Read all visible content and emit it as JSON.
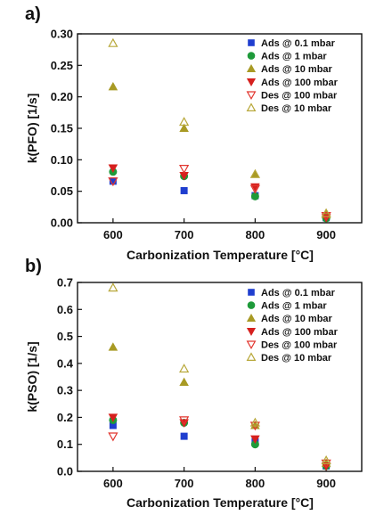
{
  "colors": {
    "ads_0_1": "#1f3ecf",
    "ads_1": "#1e9a3a",
    "ads_10": "#a89a24",
    "ads_100": "#d6201e",
    "des_100": "#e2362f",
    "des_10": "#b8a83a"
  },
  "chart_data": [
    {
      "type": "scatter",
      "panel_label": "a)",
      "title": "",
      "xlabel": "Carbonization Temperature [°C]",
      "ylabel": "k(PFO) [1/s]",
      "xlim": [
        550,
        950
      ],
      "ylim": [
        0.0,
        0.3
      ],
      "xticks": [
        600,
        700,
        800,
        900
      ],
      "yticks": [
        0.0,
        0.05,
        0.1,
        0.15,
        0.2,
        0.25,
        0.3
      ],
      "ytick_labels": [
        "0.00",
        "0.05",
        "0.10",
        "0.15",
        "0.20",
        "0.25",
        "0.30"
      ],
      "legend_position": "top-right",
      "grid": false,
      "x": [
        600,
        700,
        800,
        900
      ],
      "series": [
        {
          "name": "Ads @ 0.1 mbar",
          "marker": "square",
          "color": "#1f3ecf",
          "filled": true,
          "values": [
            0.066,
            0.051,
            0.043,
            0.008
          ]
        },
        {
          "name": "Ads @ 1 mbar",
          "marker": "circle",
          "color": "#1e9a3a",
          "filled": true,
          "values": [
            0.081,
            0.074,
            0.042,
            0.007
          ]
        },
        {
          "name": "Ads @ 10 mbar",
          "marker": "triangle-up",
          "color": "#a89a24",
          "filled": true,
          "values": [
            0.216,
            0.15,
            0.077,
            0.013
          ]
        },
        {
          "name": "Ads @ 100 mbar",
          "marker": "triangle-down",
          "color": "#d6201e",
          "filled": true,
          "values": [
            0.087,
            0.075,
            0.057,
            0.008
          ]
        },
        {
          "name": "Des @ 100 mbar",
          "marker": "triangle-down",
          "color": "#e2362f",
          "filled": false,
          "values": [
            0.066,
            0.086,
            0.054,
            0.011
          ]
        },
        {
          "name": "Des @ 10 mbar",
          "marker": "triangle-up",
          "color": "#b8a83a",
          "filled": false,
          "values": [
            0.285,
            0.16,
            0.077,
            0.015
          ]
        }
      ]
    },
    {
      "type": "scatter",
      "panel_label": "b)",
      "title": "",
      "xlabel": "Carbonization Temperature [°C]",
      "ylabel": "k(PSO) [1/s]",
      "xlim": [
        550,
        950
      ],
      "ylim": [
        0.0,
        0.7
      ],
      "xticks": [
        600,
        700,
        800,
        900
      ],
      "yticks": [
        0.0,
        0.1,
        0.2,
        0.3,
        0.4,
        0.5,
        0.6,
        0.7
      ],
      "ytick_labels": [
        "0.0",
        "0.1",
        "0.2",
        "0.3",
        "0.4",
        "0.5",
        "0.6",
        "0.7"
      ],
      "legend_position": "top-right",
      "grid": false,
      "x": [
        600,
        700,
        800,
        900
      ],
      "series": [
        {
          "name": "Ads @ 0.1 mbar",
          "marker": "square",
          "color": "#1f3ecf",
          "filled": true,
          "values": [
            0.17,
            0.13,
            0.11,
            0.02
          ]
        },
        {
          "name": "Ads @ 1 mbar",
          "marker": "circle",
          "color": "#1e9a3a",
          "filled": true,
          "values": [
            0.19,
            0.18,
            0.1,
            0.02
          ]
        },
        {
          "name": "Ads @ 10 mbar",
          "marker": "triangle-up",
          "color": "#a89a24",
          "filled": true,
          "values": [
            0.46,
            0.33,
            0.17,
            0.03
          ]
        },
        {
          "name": "Ads @ 100 mbar",
          "marker": "triangle-down",
          "color": "#d6201e",
          "filled": true,
          "values": [
            0.2,
            0.18,
            0.12,
            0.02
          ]
        },
        {
          "name": "Des @ 100 mbar",
          "marker": "triangle-down",
          "color": "#e2362f",
          "filled": false,
          "values": [
            0.13,
            0.19,
            0.17,
            0.03
          ]
        },
        {
          "name": "Des @ 10 mbar",
          "marker": "triangle-up",
          "color": "#b8a83a",
          "filled": false,
          "values": [
            0.68,
            0.38,
            0.18,
            0.04
          ]
        }
      ]
    }
  ]
}
